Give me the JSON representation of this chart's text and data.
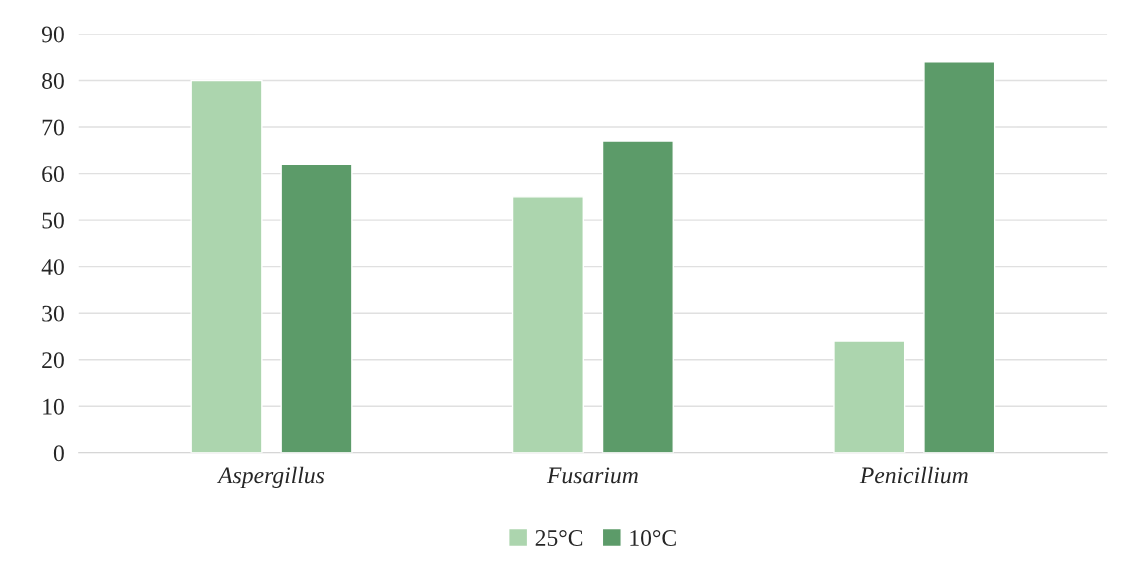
{
  "chart_data": {
    "type": "bar",
    "categories": [
      "Aspergillus",
      "Fusarium",
      "Penicillium"
    ],
    "series": [
      {
        "name": "25°C",
        "color": "#acd5ae",
        "values": [
          80,
          55,
          24
        ]
      },
      {
        "name": "10°C",
        "color": "#5c9b69",
        "values": [
          62,
          67,
          84
        ]
      }
    ],
    "ylim": [
      0,
      90
    ],
    "yticks": [
      0,
      10,
      20,
      30,
      40,
      50,
      60,
      70,
      80,
      90
    ],
    "grid": "y",
    "legend": "bottom"
  }
}
